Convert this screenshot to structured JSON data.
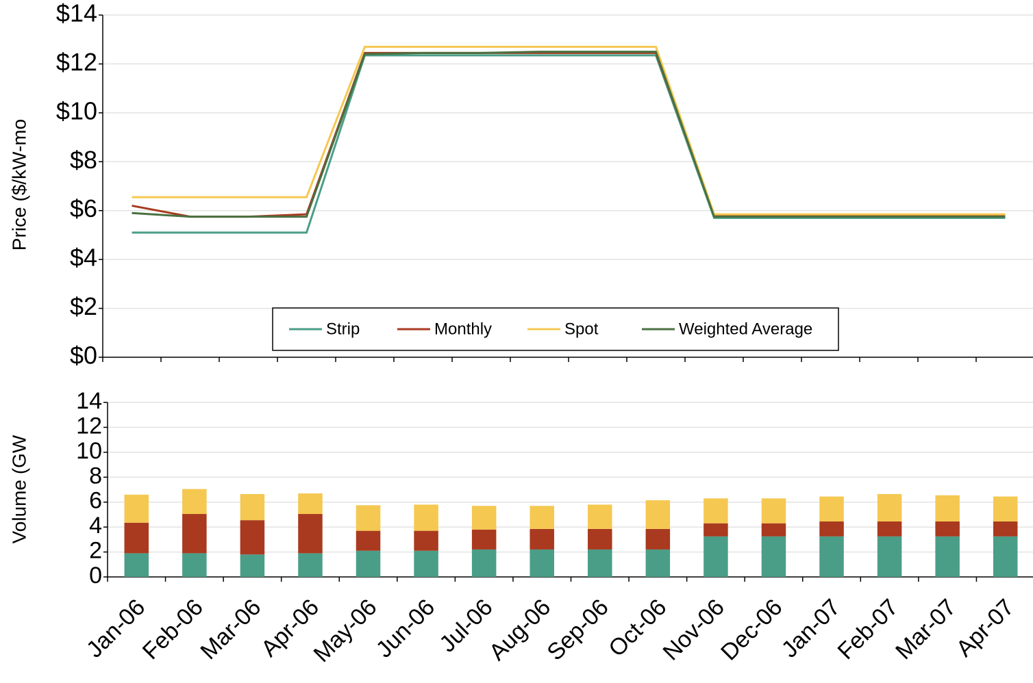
{
  "chart_data": [
    {
      "type": "line",
      "ylabel": "Price ($/kW-mo",
      "ylim": [
        0,
        14
      ],
      "yticks": [
        {
          "value": 0,
          "label": "$0"
        },
        {
          "value": 2,
          "label": "$2"
        },
        {
          "value": 4,
          "label": "$4"
        },
        {
          "value": 6,
          "label": "$6"
        },
        {
          "value": 8,
          "label": "$8"
        },
        {
          "value": 10,
          "label": "$10"
        },
        {
          "value": 12,
          "label": "$12"
        },
        {
          "value": 14,
          "label": "$14"
        }
      ],
      "grid": true,
      "legend": "lower center",
      "series": [
        {
          "name": "Strip",
          "color": "#4a9e88",
          "values": [
            5.1,
            5.1,
            5.1,
            5.1,
            12.35,
            12.35,
            12.35,
            12.35,
            12.35,
            12.35,
            5.7,
            5.7,
            5.7,
            5.7,
            5.7,
            5.7
          ]
        },
        {
          "name": "Monthly",
          "color": "#a93a1f",
          "values": [
            6.2,
            5.75,
            5.75,
            5.85,
            12.45,
            12.45,
            12.45,
            12.45,
            12.45,
            12.45,
            5.8,
            5.8,
            5.8,
            5.8,
            5.8,
            5.8
          ]
        },
        {
          "name": "Spot",
          "color": "#f5c851",
          "values": [
            6.55,
            6.55,
            6.55,
            6.55,
            12.7,
            12.7,
            12.7,
            12.7,
            12.7,
            12.7,
            5.85,
            5.85,
            5.85,
            5.85,
            5.85,
            5.85
          ]
        },
        {
          "name": "Weighted Average",
          "color": "#4a7040",
          "values": [
            5.9,
            5.75,
            5.75,
            5.75,
            12.4,
            12.45,
            12.45,
            12.5,
            12.5,
            12.5,
            5.75,
            5.75,
            5.75,
            5.75,
            5.75,
            5.75
          ]
        }
      ]
    },
    {
      "type": "stacked-bar",
      "ylabel": "Volume (GW",
      "ylim": [
        0,
        14
      ],
      "yticks": [
        0,
        2,
        4,
        6,
        8,
        10,
        12,
        14
      ],
      "grid": true,
      "categories": [
        "Jan-06",
        "Feb-06",
        "Mar-06",
        "Apr-06",
        "May-06",
        "Jun-06",
        "Jul-06",
        "Aug-06",
        "Sep-06",
        "Oct-06",
        "Nov-06",
        "Dec-06",
        "Jan-07",
        "Feb-07",
        "Mar-07",
        "Apr-07"
      ],
      "series": [
        {
          "color": "#4a9e88",
          "values": [
            1.9,
            1.9,
            1.8,
            1.9,
            2.1,
            2.1,
            2.2,
            2.2,
            2.2,
            2.2,
            3.25,
            3.25,
            3.25,
            3.25,
            3.25,
            3.25
          ]
        },
        {
          "color": "#a93a1f",
          "values": [
            2.45,
            3.15,
            2.75,
            3.15,
            1.6,
            1.6,
            1.6,
            1.65,
            1.65,
            1.65,
            1.05,
            1.05,
            1.2,
            1.2,
            1.2,
            1.2
          ]
        },
        {
          "color": "#f5c851",
          "values": [
            2.25,
            2.0,
            2.1,
            1.65,
            2.05,
            2.1,
            1.9,
            1.85,
            1.95,
            2.3,
            2.0,
            2.0,
            2.0,
            2.2,
            2.1,
            2.0
          ]
        }
      ]
    }
  ]
}
